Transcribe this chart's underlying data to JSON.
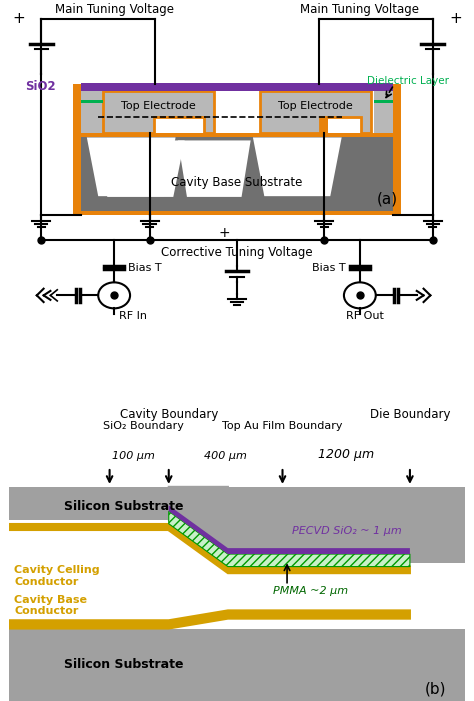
{
  "colors": {
    "orange": "#E8820A",
    "purple": "#7030A0",
    "green": "#00B050",
    "white": "#FFFFFF",
    "black": "#000000",
    "light_gray": "#B8B8B8",
    "dark_gray": "#707070",
    "mid_gray": "#A0A0A0",
    "gold": "#D4A000"
  },
  "panel_a": {
    "label": "(a)",
    "title_left": "Main Tuning Voltage",
    "title_right": "Main Tuning Voltage",
    "label_sio2": "SiO2",
    "label_dielectric": "Dielectric Layer",
    "label_top_elec1": "Top Electrode",
    "label_top_elec2": "Top Electrode",
    "label_cavity": "Cavity Base Substrate",
    "label_corrective": "Corrective Tuning Voltage",
    "label_bias_t_left": "Bias T",
    "label_bias_t_right": "Bias T",
    "label_rf_in": "RF In",
    "label_rf_out": "RF Out"
  },
  "panel_b": {
    "label": "(b)",
    "label_sio2_boundary": "SiO₂ Boundary",
    "label_cavity_boundary": "Cavity Boundary",
    "label_top_au": "Top Au Film Boundary",
    "label_die_boundary": "Die Boundary",
    "label_100um": "100 μm",
    "label_400um": "400 μm",
    "label_1200um": "1200 μm",
    "label_silicon_sub_top": "Silicon Substrate",
    "label_pecvd": "PECVD SiO₂ ~ 1 μm",
    "label_cavity_ceiling": "Cavity Celling\nConductor",
    "label_pmma": "PMMA ~2 μm",
    "label_cavity_base": "Cavity Base\nConductor",
    "label_silicon_sub_bot": "Silicon Substrate"
  }
}
